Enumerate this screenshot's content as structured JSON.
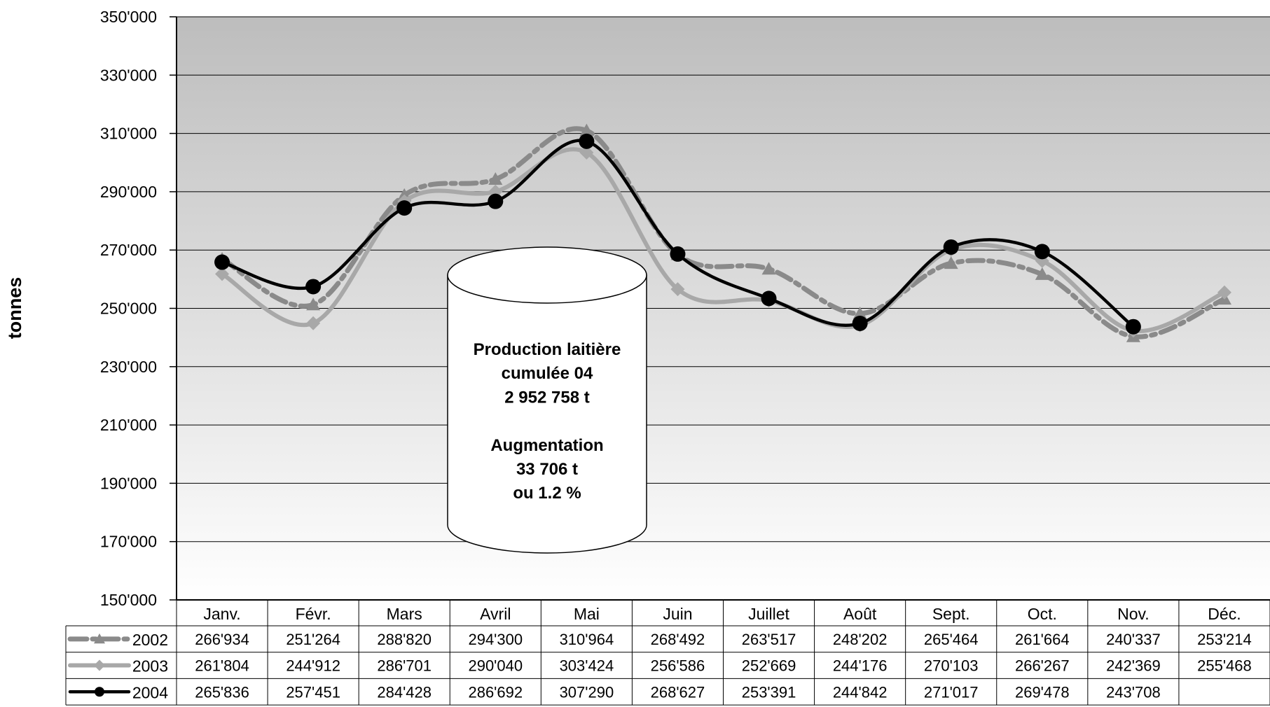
{
  "chart_data": {
    "type": "line",
    "ylabel": "tonnes",
    "ylim": [
      150000,
      350000
    ],
    "y_ticks": [
      "350'000",
      "330'000",
      "310'000",
      "290'000",
      "270'000",
      "250'000",
      "230'000",
      "210'000",
      "190'000",
      "170'000",
      "150'000"
    ],
    "y_tick_values": [
      350000,
      330000,
      310000,
      290000,
      270000,
      250000,
      230000,
      210000,
      190000,
      170000,
      150000
    ],
    "grid": true,
    "categories": [
      "Janv.",
      "Févr.",
      "Mars",
      "Avril",
      "Mai",
      "Juin",
      "Juillet",
      "Août",
      "Sept.",
      "Oct.",
      "Nov.",
      "Déc."
    ],
    "series": [
      {
        "name": "2002",
        "color": "#8a8a8a",
        "marker": "triangle",
        "dash": "dashdot",
        "values": [
          266934,
          251264,
          288820,
          294300,
          310964,
          268492,
          263517,
          248202,
          265464,
          261664,
          240337,
          253214
        ],
        "labels": [
          "266'934",
          "251'264",
          "288'820",
          "294'300",
          "310'964",
          "268'492",
          "263'517",
          "248'202",
          "265'464",
          "261'664",
          "240'337",
          "253'214"
        ]
      },
      {
        "name": "2003",
        "color": "#a8a8a8",
        "marker": "diamond",
        "dash": "solid",
        "values": [
          261804,
          244912,
          286701,
          290040,
          303424,
          256586,
          252669,
          244176,
          270103,
          266267,
          242369,
          255468
        ],
        "labels": [
          "261'804",
          "244'912",
          "286'701",
          "290'040",
          "303'424",
          "256'586",
          "252'669",
          "244'176",
          "270'103",
          "266'267",
          "242'369",
          "255'468"
        ]
      },
      {
        "name": "2004",
        "color": "#000000",
        "marker": "circle",
        "dash": "solid",
        "values": [
          265836,
          257451,
          284428,
          286692,
          307290,
          268627,
          253391,
          244842,
          271017,
          269478,
          243708,
          null
        ],
        "labels": [
          "265'836",
          "257'451",
          "284'428",
          "286'692",
          "307'290",
          "268'627",
          "253'391",
          "244'842",
          "271'017",
          "269'478",
          "243'708",
          ""
        ]
      }
    ],
    "annotation": {
      "lines": [
        "Production laitière",
        "cumulée 04",
        "2 952 758 t",
        "",
        "Augmentation",
        "33 706 t",
        "ou  1.2 %"
      ]
    }
  }
}
